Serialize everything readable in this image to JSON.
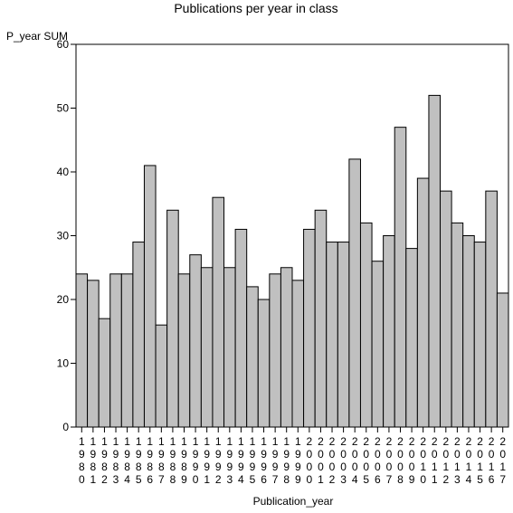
{
  "chart_data": {
    "type": "bar",
    "title": "Publications per year in class",
    "xlabel": "Publication_year",
    "ylabel": "P_year SUM",
    "ylim": [
      0,
      60
    ],
    "yticks": [
      0,
      10,
      20,
      30,
      40,
      50,
      60
    ],
    "grid": false,
    "legend": "none",
    "categories": [
      "1980",
      "1981",
      "1982",
      "1983",
      "1984",
      "1985",
      "1986",
      "1987",
      "1988",
      "1989",
      "1990",
      "1991",
      "1992",
      "1993",
      "1994",
      "1995",
      "1996",
      "1997",
      "1998",
      "1999",
      "2000",
      "2001",
      "2002",
      "2003",
      "2004",
      "2005",
      "2006",
      "2007",
      "2008",
      "2009",
      "2010",
      "2011",
      "2012",
      "2013",
      "2014",
      "2015",
      "2016",
      "2017"
    ],
    "values": [
      24,
      23,
      17,
      24,
      24,
      29,
      41,
      16,
      34,
      24,
      27,
      25,
      36,
      25,
      31,
      22,
      20,
      24,
      25,
      23,
      31,
      34,
      29,
      29,
      42,
      32,
      26,
      30,
      47,
      28,
      39,
      52,
      37,
      32,
      30,
      29,
      37,
      21
    ],
    "colors": {
      "bar_fill": "#c0c0c0",
      "bar_stroke": "#000000",
      "axis": "#000000",
      "background": "#ffffff"
    }
  }
}
